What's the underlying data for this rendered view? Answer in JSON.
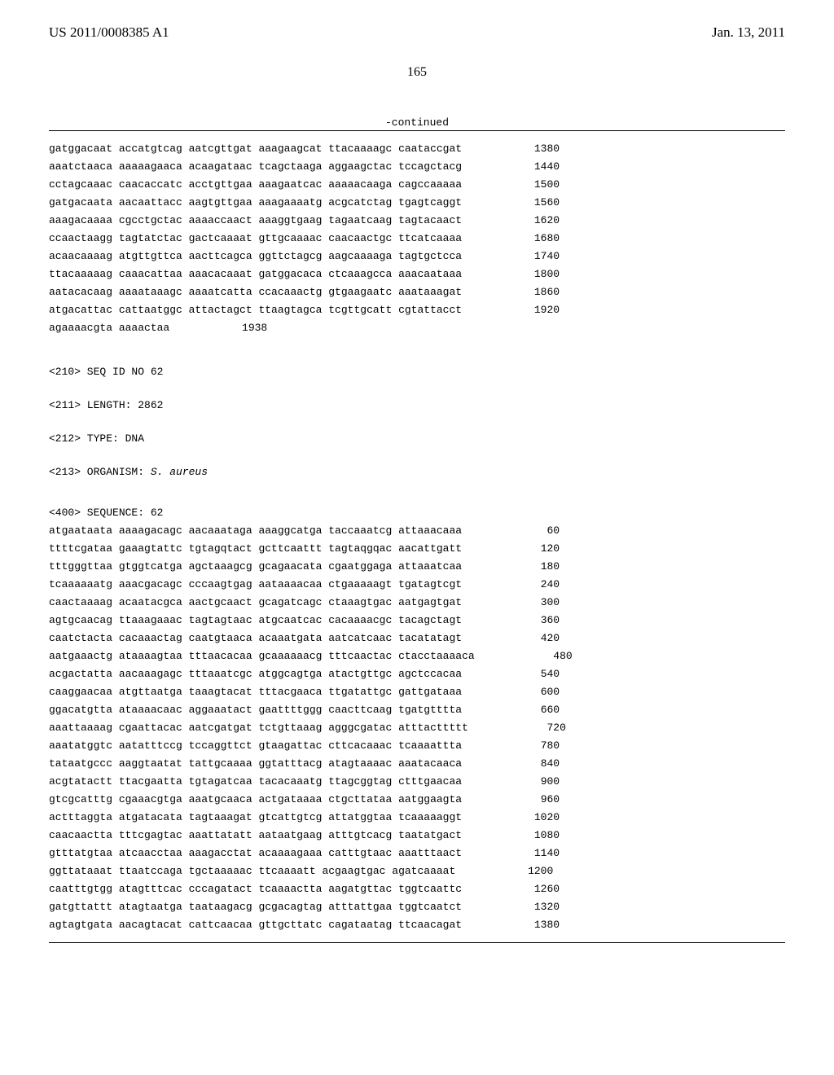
{
  "header": {
    "pub_number": "US 2011/0008385 A1",
    "pub_date": "Jan. 13, 2011"
  },
  "page_number": "165",
  "continued_label": "-continued",
  "font": {
    "header_family": "Times New Roman",
    "mono_family": "Courier New",
    "header_size_pt": 13,
    "mono_size_pt": 10
  },
  "colors": {
    "text": "#000000",
    "background": "#ffffff",
    "rule": "#000000"
  },
  "sequence_block_1": {
    "rows": [
      {
        "seq": "gatggacaat accatgtcag aatcgttgat aaagaagcat ttacaaaagc caataccgat",
        "pos": "1380"
      },
      {
        "seq": "aaatctaaca aaaaagaaca acaagataac tcagctaaga aggaagctac tccagctacg",
        "pos": "1440"
      },
      {
        "seq": "cctagcaaac caacaccatc acctgttgaa aaagaatcac aaaaacaaga cagccaaaaa",
        "pos": "1500"
      },
      {
        "seq": "gatgacaata aacaattacc aagtgttgaa aaagaaaatg acgcatctag tgagtcaggt",
        "pos": "1560"
      },
      {
        "seq": "aaagacaaaa cgcctgctac aaaaccaact aaaggtgaag tagaatcaag tagtacaact",
        "pos": "1620"
      },
      {
        "seq": "ccaactaagg tagtatctac gactcaaaat gttgcaaaac caacaactgc ttcatcaaaa",
        "pos": "1680"
      },
      {
        "seq": "acaacaaaag atgttgttca aacttcagca ggttctagcg aagcaaaaga tagtgctcca",
        "pos": "1740"
      },
      {
        "seq": "ttacaaaaag caaacattaa aaacacaaat gatggacaca ctcaaagcca aaacaataaa",
        "pos": "1800"
      },
      {
        "seq": "aatacacaag aaaataaagc aaaatcatta ccacaaactg gtgaagaatc aaataaagat",
        "pos": "1860"
      },
      {
        "seq": "atgacattac cattaatggc attactagct ttaagtagca tcgttgcatt cgtattacct",
        "pos": "1920"
      },
      {
        "seq": "agaaaacgta aaaactaa",
        "pos": "1938"
      }
    ]
  },
  "metadata": {
    "seq_id": "<210> SEQ ID NO 62",
    "length": "<211> LENGTH: 2862",
    "type": "<212> TYPE: DNA",
    "organism_prefix": "<213> ORGANISM: ",
    "organism_value": "S. aureus",
    "sequence_header": "<400> SEQUENCE: 62"
  },
  "sequence_block_2": {
    "rows": [
      {
        "seq": "atgaataata aaaagacagc aacaaataga aaaggcatga taccaaatcg attaaacaaa",
        "pos": "60"
      },
      {
        "seq": "ttttcgataa gaaagtattc tgtagqtact gcttcaattt tagtaqgqac aacattgatt",
        "pos": "120"
      },
      {
        "seq": "tttgggttaa gtggtcatga agctaaagcg gcagaacata cgaatggaga attaaatcaa",
        "pos": "180"
      },
      {
        "seq": "tcaaaaaatg aaacgacagc cccaagtgag aataaaacaa ctgaaaaagt tgatagtcgt",
        "pos": "240"
      },
      {
        "seq": "caactaaaag acaatacgca aactgcaact gcagatcagc ctaaagtgac aatgagtgat",
        "pos": "300"
      },
      {
        "seq": "agtgcaacag ttaaagaaac tagtagtaac atgcaatcac cacaaaacgc tacagctagt",
        "pos": "360"
      },
      {
        "seq": "caatctacta cacaaactag caatgtaaca acaaatgata aatcatcaac tacatatagt",
        "pos": "420"
      },
      {
        "seq": "aatgaaactg ataaaagtaa tttaacacaa gcaaaaaacg tttcaactac ctacctaaaaca",
        "pos": "480"
      },
      {
        "seq": "acgactatta aacaaagagc tttaaatcgc atggcagtga atactgttgc agctccacaa",
        "pos": "540"
      },
      {
        "seq": "caaggaacaa atgttaatga taaagtacat tttacgaaca ttgatattgc gattgataaa",
        "pos": "600"
      },
      {
        "seq": "ggacatgtta ataaaacaac aggaaatact gaattttggg caacttcaag tgatgtttta",
        "pos": "660"
      },
      {
        "seq": "aaattaaaag cgaattacac aatcgatgat tctgttaaag agggcgatac atttacttttt",
        "pos": "720"
      },
      {
        "seq": "aaatatggtc aatatttccg tccaggttct gtaagattac cttcacaaac tcaaaattta",
        "pos": "780"
      },
      {
        "seq": "tataatgccc aaggtaatat tattgcaaaa ggtatttacg atagtaaaac aaatacaaca",
        "pos": "840"
      },
      {
        "seq": "acgtatactt ttacgaatta tgtagatcaa tacacaaatg ttagcggtag ctttgaacaa",
        "pos": "900"
      },
      {
        "seq": "gtcgcatttg cgaaacgtga aaatgcaaca actgataaaa ctgcttataa aatggaagta",
        "pos": "960"
      },
      {
        "seq": "actttaggta atgatacata tagtaaagat gtcattgtcg attatggtaa tcaaaaaggt",
        "pos": "1020"
      },
      {
        "seq": "caacaactta tttcgagtac aaattatatt aataatgaag atttgtcacg taatatgact",
        "pos": "1080"
      },
      {
        "seq": "gtttatgtaa atcaacctaa aaagacctat acaaaagaaa catttgtaac aaatttaact",
        "pos": "1140"
      },
      {
        "seq": "ggttataaat ttaatccaga tgctaaaaac ttcaaaatt acgaagtgac agatcaaaat",
        "pos": "1200"
      },
      {
        "seq": "caatttgtgg atagtttcac cccagatact tcaaaactta aagatgttac tggtcaattc",
        "pos": "1260"
      },
      {
        "seq": "gatgttattt atagtaatga taataagacg gcgacagtag atttattgaa tggtcaatct",
        "pos": "1320"
      },
      {
        "seq": "agtagtgata aacagtacat cattcaacaa gttgcttatc cagataatag ttcaacagat",
        "pos": "1380"
      }
    ]
  }
}
